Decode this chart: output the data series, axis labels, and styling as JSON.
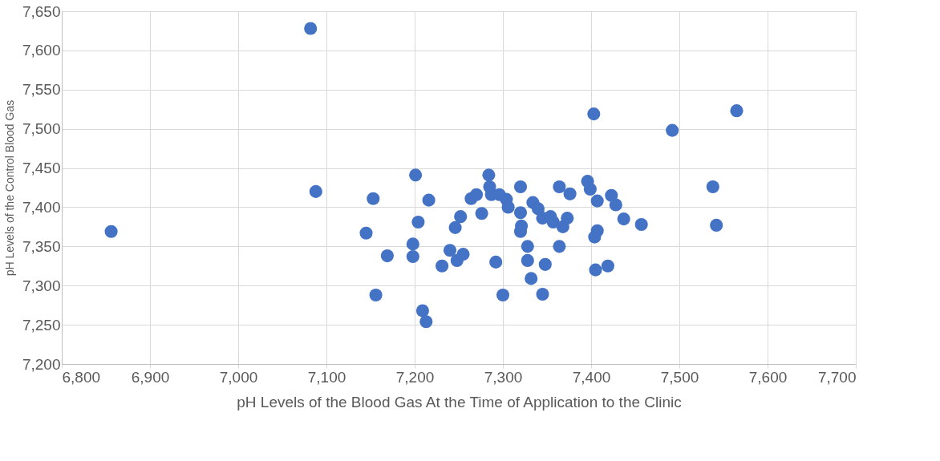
{
  "chart_data": {
    "type": "scatter",
    "xlabel": "pH Levels of the Blood Gas At the Time of Application to the Clinic",
    "ylabel": "pH Levels of the Control Blood Gas",
    "x": [
      7082,
      7088,
      6856,
      7153,
      7145,
      7169,
      7156,
      7201,
      7216,
      7204,
      7198,
      7198,
      7209,
      7213,
      7231,
      7240,
      7248,
      7255,
      7246,
      7252,
      7264,
      7270,
      7276,
      7284,
      7285,
      7287,
      7296,
      7304,
      7306,
      7292,
      7300,
      7320,
      7320,
      7321,
      7320,
      7328,
      7328,
      7332,
      7345,
      7348,
      7334,
      7340,
      7345,
      7354,
      7357,
      7364,
      7364,
      7376,
      7368,
      7373,
      7396,
      7399,
      7407,
      7423,
      7428,
      7437,
      7407,
      7404,
      7405,
      7419,
      7403,
      7492,
      7565,
      7538,
      7542,
      7457
    ],
    "values": [
      7628,
      7420,
      7369,
      7411,
      7367,
      7338,
      7288,
      7441,
      7409,
      7381,
      7353,
      7337,
      7268,
      7254,
      7325,
      7345,
      7332,
      7340,
      7374,
      7388,
      7411,
      7416,
      7392,
      7441,
      7426,
      7416,
      7416,
      7410,
      7400,
      7330,
      7288,
      7426,
      7393,
      7376,
      7369,
      7350,
      7332,
      7309,
      7289,
      7327,
      7406,
      7398,
      7386,
      7388,
      7381,
      7350,
      7426,
      7417,
      7375,
      7386,
      7433,
      7423,
      7408,
      7415,
      7403,
      7385,
      7370,
      7362,
      7320,
      7325,
      7519,
      7498,
      7523,
      7426,
      7377,
      7378
    ],
    "color": "#4472c4",
    "grid": true,
    "xlim": [
      6800,
      7700
    ],
    "ylim": [
      7200,
      7650
    ],
    "xticks": [
      {
        "value": 6800,
        "label": "6,800"
      },
      {
        "value": 6900,
        "label": "6,900"
      },
      {
        "value": 7000,
        "label": "7,000"
      },
      {
        "value": 7100,
        "label": "7,100"
      },
      {
        "value": 7200,
        "label": "7,200"
      },
      {
        "value": 7300,
        "label": "7,300"
      },
      {
        "value": 7400,
        "label": "7,400"
      },
      {
        "value": 7500,
        "label": "7,500"
      },
      {
        "value": 7600,
        "label": "7,600"
      },
      {
        "value": 7700,
        "label": "7,700"
      }
    ],
    "yticks": [
      {
        "value": 7200,
        "label": "7,200"
      },
      {
        "value": 7250,
        "label": "7,250"
      },
      {
        "value": 7300,
        "label": "7,300"
      },
      {
        "value": 7350,
        "label": "7,350"
      },
      {
        "value": 7400,
        "label": "7,400"
      },
      {
        "value": 7450,
        "label": "7,450"
      },
      {
        "value": 7500,
        "label": "7,500"
      },
      {
        "value": 7550,
        "label": "7,550"
      },
      {
        "value": 7600,
        "label": "7,600"
      },
      {
        "value": 7650,
        "label": "7,650"
      }
    ]
  }
}
